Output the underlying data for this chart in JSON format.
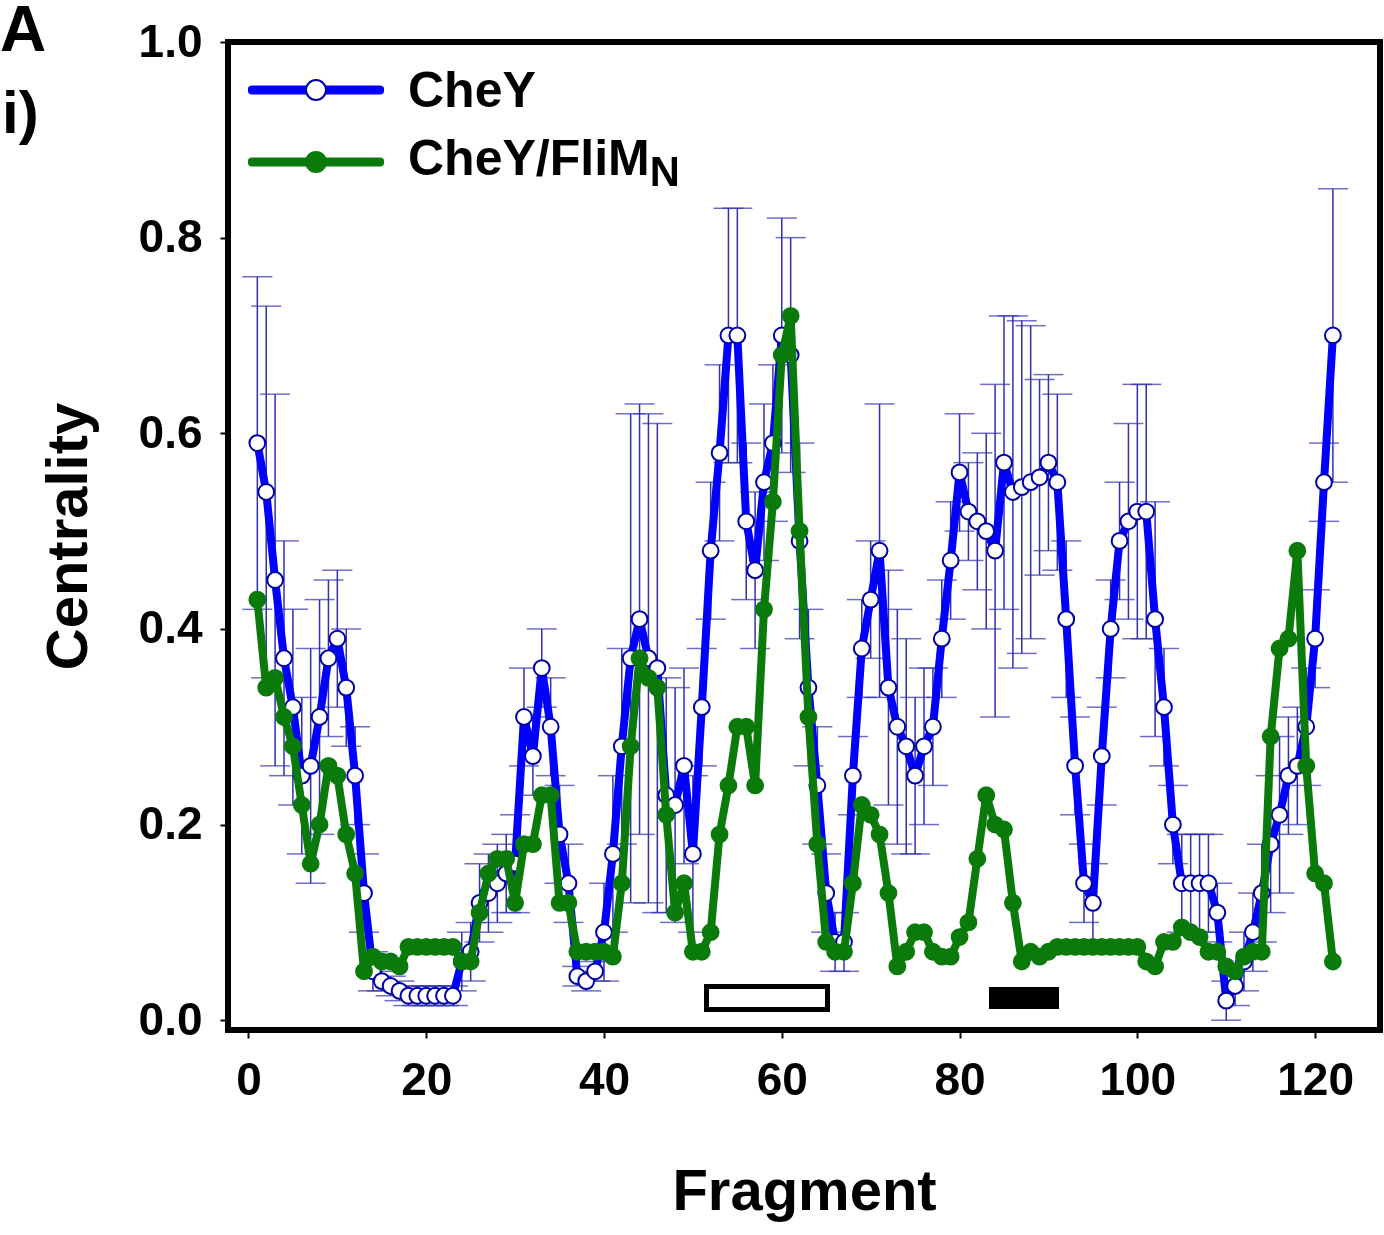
{
  "chart_data": {
    "type": "line",
    "xlabel": "Fragment",
    "ylabel": "Centrality",
    "annotations": [
      "A",
      "i)"
    ],
    "xlim": [
      -2.3,
      127.3
    ],
    "ylim": [
      -0.01,
      1.0
    ],
    "xticks": [
      0,
      20,
      40,
      60,
      80,
      100,
      120
    ],
    "yticks": [
      {
        "value": 0,
        "label": "0.0"
      },
      0.2,
      0.4,
      0.6,
      0.8,
      {
        "value": 1,
        "label": "1.0"
      }
    ],
    "grid": false,
    "legend": "top left",
    "marker": "circle",
    "line_style": "solid",
    "x": [
      1,
      2,
      3,
      4,
      5,
      6,
      7,
      8,
      9,
      10,
      11,
      12,
      13,
      14,
      15,
      16,
      17,
      18,
      19,
      20,
      21,
      22,
      23,
      24,
      25,
      26,
      27,
      28,
      29,
      30,
      31,
      32,
      33,
      34,
      35,
      36,
      37,
      38,
      39,
      40,
      41,
      42,
      43,
      44,
      45,
      46,
      47,
      48,
      49,
      50,
      51,
      52,
      53,
      54,
      55,
      56,
      57,
      58,
      59,
      60,
      61,
      62,
      63,
      64,
      65,
      66,
      67,
      68,
      69,
      70,
      71,
      72,
      73,
      74,
      75,
      76,
      77,
      78,
      79,
      80,
      81,
      82,
      83,
      84,
      85,
      86,
      87,
      88,
      89,
      90,
      91,
      92,
      93,
      94,
      95,
      96,
      97,
      98,
      99,
      100,
      101,
      102,
      103,
      104,
      105,
      106,
      107,
      108,
      109,
      110,
      111,
      112,
      113,
      114,
      115,
      116,
      117,
      118,
      119,
      120,
      121,
      122
    ],
    "series": [
      {
        "name": "CheY",
        "color": "#0000ff",
        "values": [
          0.59,
          0.54,
          0.45,
          0.37,
          0.32,
          0.25,
          0.26,
          0.31,
          0.37,
          0.39,
          0.34,
          0.25,
          0.13,
          0.05,
          0.04,
          0.035,
          0.03,
          0.025,
          0.025,
          0.025,
          0.025,
          0.025,
          0.025,
          0.06,
          0.07,
          0.12,
          0.13,
          0.14,
          0.15,
          0.16,
          0.31,
          0.27,
          0.36,
          0.3,
          0.19,
          0.14,
          0.045,
          0.04,
          0.05,
          0.09,
          0.17,
          0.28,
          0.37,
          0.41,
          0.37,
          0.36,
          0.23,
          0.22,
          0.26,
          0.17,
          0.32,
          0.48,
          0.58,
          0.7,
          0.7,
          0.51,
          0.46,
          0.55,
          0.59,
          0.7,
          0.68,
          0.49,
          0.34,
          0.24,
          0.13,
          0.08,
          0.08,
          0.25,
          0.38,
          0.43,
          0.48,
          0.34,
          0.3,
          0.28,
          0.25,
          0.28,
          0.3,
          0.39,
          0.47,
          0.56,
          0.52,
          0.51,
          0.5,
          0.48,
          0.57,
          0.54,
          0.545,
          0.55,
          0.555,
          0.57,
          0.55,
          0.41,
          0.26,
          0.14,
          0.12,
          0.27,
          0.4,
          0.49,
          0.51,
          0.52,
          0.52,
          0.41,
          0.32,
          0.2,
          0.14,
          0.14,
          0.14,
          0.14,
          0.11,
          0.02,
          0.035,
          0.06,
          0.09,
          0.13,
          0.18,
          0.21,
          0.25,
          0.26,
          0.3,
          0.39,
          0.55,
          0.7
        ],
        "errors": [
          0.17,
          0.19,
          0.19,
          0.12,
          0.1,
          0.08,
          0.12,
          0.12,
          0.08,
          0.07,
          0.06,
          0.05,
          0.04,
          0.02,
          0.01,
          0.01,
          0.01,
          0.01,
          0.01,
          0.01,
          0.01,
          0.01,
          0.01,
          0.03,
          0.03,
          0.04,
          0.04,
          0.04,
          0.04,
          0.05,
          0.05,
          0.04,
          0.04,
          0.05,
          0.05,
          0.04,
          0.01,
          0.01,
          0.01,
          0.05,
          0.08,
          0.1,
          0.25,
          0.22,
          0.25,
          0.25,
          0.12,
          0.12,
          0.1,
          0.08,
          0.06,
          0.07,
          0.09,
          0.13,
          0.13,
          0.08,
          0.08,
          0.08,
          0.08,
          0.12,
          0.12,
          0.1,
          0.08,
          0.06,
          0.04,
          0.03,
          0.03,
          0.04,
          0.05,
          0.06,
          0.15,
          0.12,
          0.12,
          0.11,
          0.08,
          0.08,
          0.06,
          0.06,
          0.06,
          0.06,
          0.05,
          0.07,
          0.1,
          0.17,
          0.15,
          0.18,
          0.17,
          0.16,
          0.1,
          0.09,
          0.09,
          0.08,
          0.05,
          0.04,
          0.04,
          0.05,
          0.05,
          0.06,
          0.1,
          0.13,
          0.13,
          0.12,
          0.06,
          0.04,
          0.05,
          0.05,
          0.05,
          0.05,
          0.03,
          0.02,
          0.02,
          0.03,
          0.04,
          0.05,
          0.07,
          0.08,
          0.06,
          0.06,
          0.06,
          0.05,
          0.04,
          0.15
        ]
      },
      {
        "name": "CheY/FliM$_{N}$",
        "color": "#0a7a0a",
        "values": [
          0.43,
          0.34,
          0.35,
          0.31,
          0.28,
          0.22,
          0.16,
          0.2,
          0.26,
          0.25,
          0.19,
          0.15,
          0.05,
          0.065,
          0.06,
          0.06,
          0.055,
          0.075,
          0.075,
          0.075,
          0.075,
          0.075,
          0.075,
          0.06,
          0.06,
          0.11,
          0.15,
          0.165,
          0.165,
          0.12,
          0.18,
          0.18,
          0.23,
          0.23,
          0.12,
          0.12,
          0.07,
          0.07,
          0.07,
          0.07,
          0.065,
          0.14,
          0.28,
          0.37,
          0.35,
          0.34,
          0.21,
          0.11,
          0.14,
          0.07,
          0.07,
          0.09,
          0.19,
          0.24,
          0.3,
          0.3,
          0.24,
          0.42,
          0.53,
          0.68,
          0.72,
          0.5,
          0.31,
          0.18,
          0.08,
          0.07,
          0.07,
          0.14,
          0.22,
          0.21,
          0.19,
          0.13,
          0.055,
          0.07,
          0.09,
          0.09,
          0.07,
          0.065,
          0.065,
          0.085,
          0.1,
          0.165,
          0.23,
          0.2,
          0.195,
          0.12,
          0.06,
          0.07,
          0.065,
          0.07,
          0.075,
          0.075,
          0.075,
          0.075,
          0.075,
          0.075,
          0.075,
          0.075,
          0.075,
          0.075,
          0.06,
          0.055,
          0.08,
          0.08,
          0.095,
          0.09,
          0.085,
          0.07,
          0.07,
          0.055,
          0.05,
          0.065,
          0.07,
          0.07,
          0.29,
          0.38,
          0.39,
          0.48,
          0.26,
          0.15,
          0.14,
          0.06
        ]
      }
    ]
  }
}
